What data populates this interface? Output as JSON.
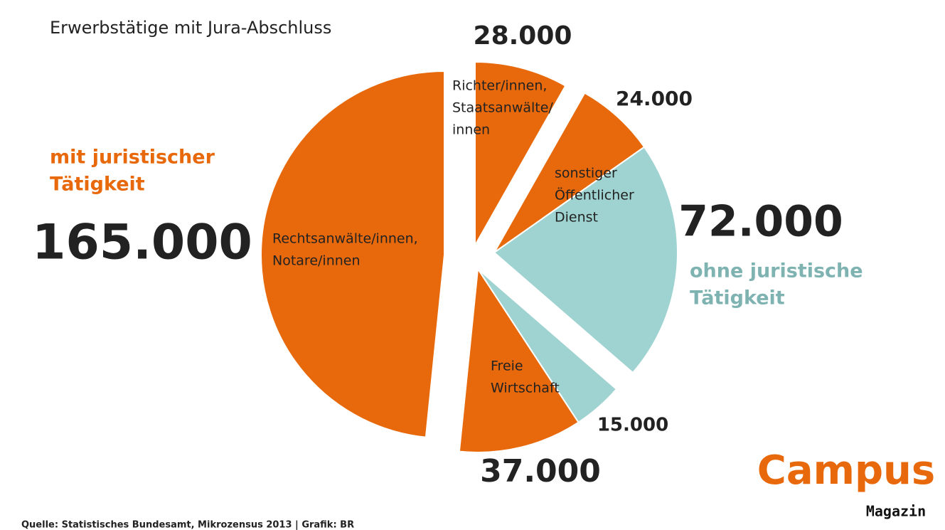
{
  "chart_data": {
    "type": "pie",
    "title": "Erwerbstätige mit Jura-Abschluss",
    "categories": [
      [
        "Richter/innen,",
        "Staatsanwälte/",
        "innen"
      ],
      [
        "sonstiger",
        "Öffentlicher",
        "Dienst"
      ],
      null,
      null,
      [
        "Freie",
        "Wirtschaft"
      ],
      [
        "Rechtsanwälte/innen,",
        "Notare/innen"
      ]
    ],
    "values": [
      28000,
      24000,
      72000,
      15000,
      37000,
      165000
    ],
    "value_labels": [
      "28.000",
      "24.000",
      "72.000",
      "15.000",
      "37.000",
      "165.000"
    ],
    "colors": [
      "#e8690b",
      "#e8690b",
      "#9fd3d1",
      "#9fd3d1",
      "#e8690b",
      "#e8690b"
    ],
    "groups": [
      {
        "name": [
          "mit juristischer",
          "Tätigkeit"
        ],
        "color": "#e8690b"
      },
      {
        "name": [
          "ohne juristische",
          "Tätigkeit"
        ],
        "color": "#7fb3b1"
      }
    ],
    "source": "Quelle: Statistisches Bundesamt, Mikrozensus 2013 | Grafik: BR",
    "logo": {
      "name": "Campus",
      "subtitle": "Magazin",
      "color": "#e8690b"
    }
  }
}
